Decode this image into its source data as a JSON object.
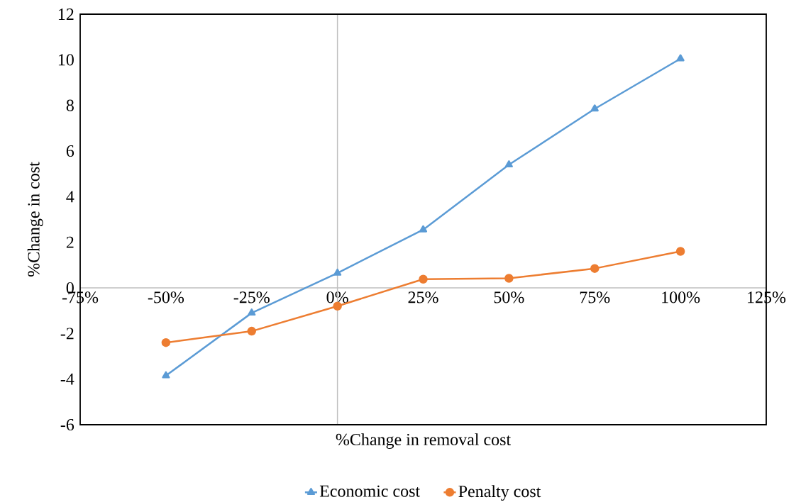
{
  "chart_data": {
    "type": "line",
    "xlabel": "%Change in removal cost",
    "ylabel": "%Change in cost",
    "x": [
      -50,
      -25,
      0,
      25,
      50,
      75,
      100
    ],
    "series": [
      {
        "name": "Economic cost",
        "color": "#5b9bd5",
        "marker": "triangle",
        "values": [
          -3.85,
          -1.1,
          0.65,
          2.55,
          5.4,
          7.85,
          10.05
        ]
      },
      {
        "name": "Penalty cost",
        "color": "#ed7d31",
        "marker": "circle",
        "values": [
          -2.4,
          -1.9,
          -0.8,
          0.38,
          0.42,
          0.85,
          1.6
        ]
      }
    ],
    "xlim": [
      -75,
      125
    ],
    "ylim": [
      -6,
      12
    ],
    "xticks": [
      {
        "value": -75,
        "label": "-75%"
      },
      {
        "value": -50,
        "label": "-50%"
      },
      {
        "value": -25,
        "label": "-25%"
      },
      {
        "value": 0,
        "label": "0%"
      },
      {
        "value": 25,
        "label": "25%"
      },
      {
        "value": 50,
        "label": "50%"
      },
      {
        "value": 75,
        "label": "75%"
      },
      {
        "value": 100,
        "label": "100%"
      },
      {
        "value": 125,
        "label": "125%"
      }
    ],
    "yticks": [
      -6,
      -4,
      -2,
      0,
      2,
      4,
      6,
      8,
      10,
      12
    ],
    "ref_lines": [
      {
        "axis": "x",
        "value": 0,
        "color": "#bfbfbf"
      }
    ],
    "line_style": "solid",
    "legend": "bottom"
  }
}
